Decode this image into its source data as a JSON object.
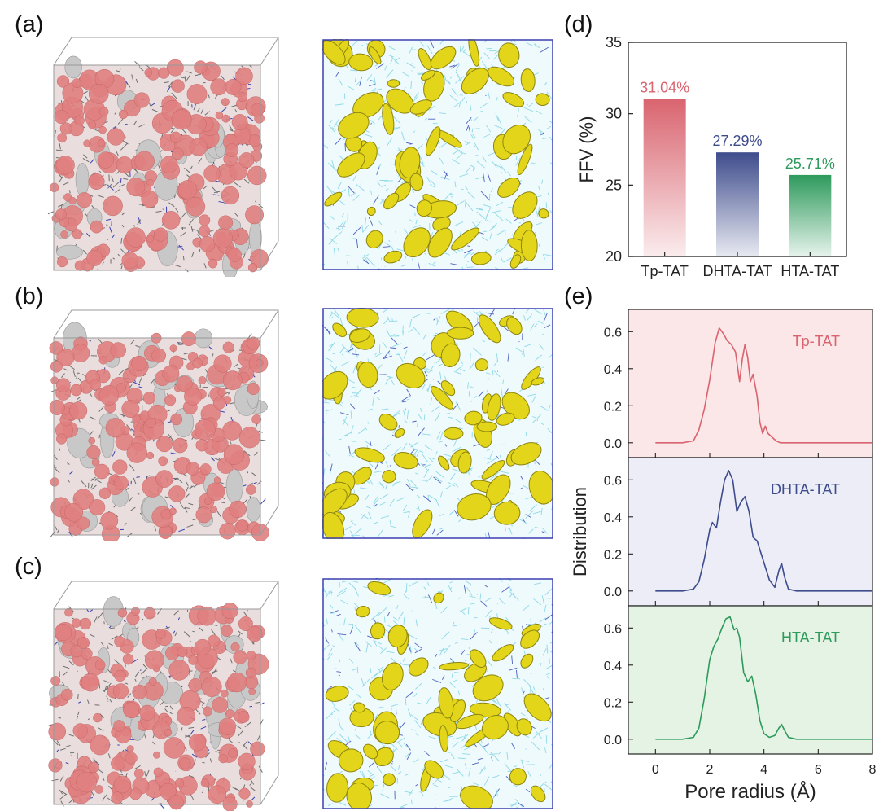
{
  "panels": {
    "a": "(a)",
    "b": "(b)",
    "c": "(c)",
    "d": "(d)",
    "e": "(e)"
  },
  "colors": {
    "tp": "#d9646f",
    "dhta": "#3e4c8c",
    "hta": "#2e9a5c",
    "tp_bg": "#fbe6e8",
    "dhta_bg": "#ecedf7",
    "hta_bg": "#e4f3e4",
    "pore_pink": "#e0807f",
    "void_yellow": "#e3d61a",
    "mesh_cyan": "#8fd9e6"
  },
  "chart_data": [
    {
      "type": "bar",
      "title": "",
      "xlabel": "",
      "ylabel": "FFV (%)",
      "categories": [
        "Tp-TAT",
        "DHTA-TAT",
        "HTA-TAT"
      ],
      "values": [
        31.04,
        27.29,
        25.71
      ],
      "value_labels": [
        "31.04%",
        "27.29%",
        "25.71%"
      ],
      "ylim": [
        20,
        35
      ],
      "yticks": [
        20,
        25,
        30,
        35
      ],
      "ytick_labels": [
        "20",
        "25",
        "30",
        "35"
      ]
    },
    {
      "type": "line",
      "title": "",
      "xlabel": "Pore radius (Å)",
      "ylabel": "Distribution",
      "xlim": [
        -1,
        8
      ],
      "xticks": [
        0,
        2,
        4,
        6,
        8
      ],
      "xtick_labels": [
        "0",
        "2",
        "4",
        "6",
        "8"
      ],
      "ylim": [
        -0.08,
        0.72
      ],
      "yticks": [
        0.0,
        0.2,
        0.4,
        0.6
      ],
      "ytick_labels": [
        "0.0",
        "0.2",
        "0.4",
        "0.6"
      ],
      "series": [
        {
          "name": "Tp-TAT",
          "x": [
            0,
            1.0,
            1.4,
            1.6,
            1.8,
            2.0,
            2.2,
            2.35,
            2.5,
            2.65,
            2.8,
            2.95,
            3.1,
            3.2,
            3.3,
            3.4,
            3.5,
            3.6,
            3.75,
            3.85,
            3.95,
            4.05,
            4.15,
            4.3,
            4.45,
            4.6,
            5.0,
            8.0
          ],
          "y": [
            0,
            0,
            0.01,
            0.07,
            0.18,
            0.34,
            0.54,
            0.62,
            0.59,
            0.55,
            0.53,
            0.49,
            0.33,
            0.45,
            0.53,
            0.46,
            0.33,
            0.37,
            0.25,
            0.11,
            0.05,
            0.09,
            0.05,
            0.03,
            0.01,
            0,
            0,
            0
          ]
        },
        {
          "name": "DHTA-TAT",
          "x": [
            0,
            1.0,
            1.4,
            1.6,
            1.8,
            2.0,
            2.1,
            2.25,
            2.4,
            2.55,
            2.7,
            2.85,
            3.0,
            3.15,
            3.3,
            3.45,
            3.6,
            3.75,
            3.9,
            4.05,
            4.2,
            4.4,
            4.55,
            4.65,
            4.75,
            4.9,
            5.2,
            8.0
          ],
          "y": [
            0,
            0,
            0.01,
            0.05,
            0.17,
            0.33,
            0.37,
            0.34,
            0.48,
            0.6,
            0.65,
            0.6,
            0.43,
            0.48,
            0.51,
            0.43,
            0.29,
            0.27,
            0.2,
            0.13,
            0.06,
            0.02,
            0.11,
            0.15,
            0.08,
            0.01,
            0,
            0
          ]
        },
        {
          "name": "HTA-TAT",
          "x": [
            0,
            1.0,
            1.4,
            1.6,
            1.8,
            2.0,
            2.15,
            2.3,
            2.45,
            2.6,
            2.75,
            2.9,
            3.0,
            3.1,
            3.25,
            3.4,
            3.55,
            3.7,
            3.85,
            4.0,
            4.2,
            4.4,
            4.55,
            4.65,
            4.75,
            4.9,
            5.2,
            8.0
          ],
          "y": [
            0,
            0,
            0.01,
            0.06,
            0.22,
            0.43,
            0.5,
            0.54,
            0.6,
            0.65,
            0.66,
            0.59,
            0.6,
            0.55,
            0.36,
            0.31,
            0.34,
            0.24,
            0.1,
            0.03,
            0.01,
            0.02,
            0.06,
            0.08,
            0.05,
            0.01,
            0,
            0
          ]
        }
      ]
    }
  ]
}
